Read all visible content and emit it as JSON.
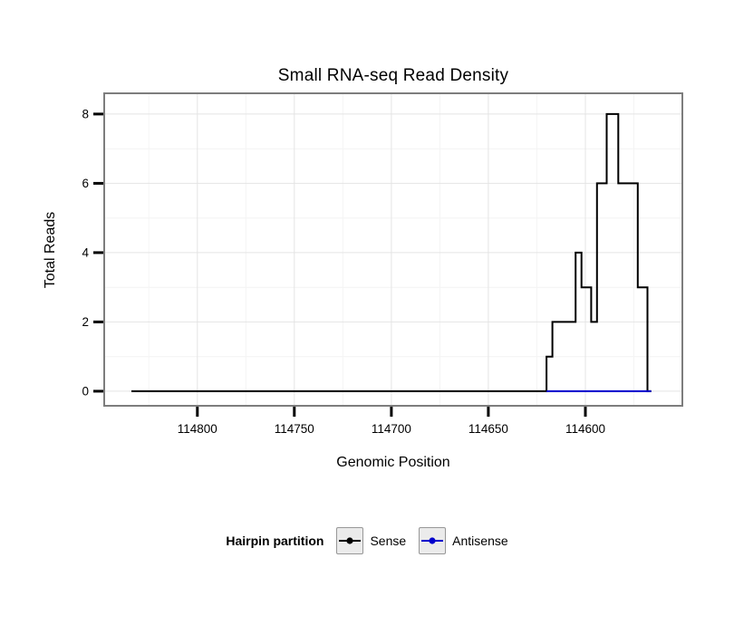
{
  "chart_data": {
    "type": "line",
    "title": "Small RNA-seq Read Density",
    "xlabel": "Genomic Position",
    "ylabel": "Total Reads",
    "x_axis": {
      "ticks": [
        114800,
        114750,
        114700,
        114650,
        114600
      ],
      "minor_ticks": [
        114825,
        114775,
        114725,
        114675,
        114625,
        114575
      ],
      "range": [
        114848,
        114550
      ],
      "reversed": true
    },
    "y_axis": {
      "ticks": [
        0,
        2,
        4,
        6,
        8
      ],
      "minor_ticks": [
        1,
        3,
        5,
        7
      ],
      "range": [
        -0.42,
        8.6
      ]
    },
    "grid": {
      "major_color": "#e4e4e4",
      "minor_color": "#f4f4f4",
      "panel_border_color": "#7d7d7d",
      "tick_color": "#000000"
    },
    "series": [
      {
        "name": "Sense",
        "color": "#000000",
        "points": [
          [
            114834,
            0
          ],
          [
            114620,
            0
          ],
          [
            114620,
            1
          ],
          [
            114617,
            1
          ],
          [
            114617,
            2
          ],
          [
            114605,
            2
          ],
          [
            114605,
            4
          ],
          [
            114602,
            4
          ],
          [
            114602,
            3
          ],
          [
            114597,
            3
          ],
          [
            114597,
            2
          ],
          [
            114594,
            2
          ],
          [
            114594,
            6
          ],
          [
            114589,
            6
          ],
          [
            114589,
            8
          ],
          [
            114583,
            8
          ],
          [
            114583,
            6
          ],
          [
            114573,
            6
          ],
          [
            114573,
            3
          ],
          [
            114568,
            3
          ],
          [
            114568,
            0
          ],
          [
            114566,
            0
          ]
        ]
      },
      {
        "name": "Antisense",
        "color": "#0000CC",
        "points": [
          [
            114620,
            0
          ],
          [
            114566,
            0
          ]
        ]
      }
    ],
    "legend": {
      "title": "Hairpin partition",
      "entries": [
        {
          "label": "Sense",
          "color": "#000000"
        },
        {
          "label": "Antisense",
          "color": "#0000CC"
        }
      ],
      "position": "bottom"
    }
  }
}
